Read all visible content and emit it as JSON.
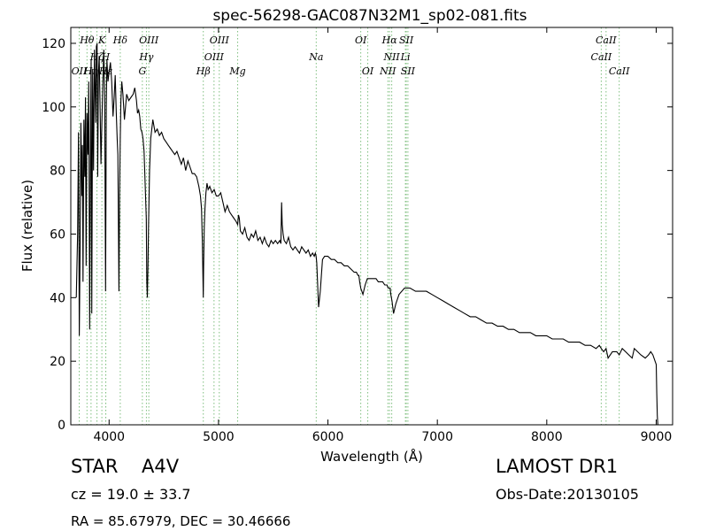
{
  "chart_data": {
    "type": "line",
    "title": "spec-56298-GAC087N32M1_sp02-081.fits",
    "xlabel": "Wavelength (Å)",
    "ylabel": "Flux (relative)",
    "xlim": [
      3650,
      9150
    ],
    "ylim": [
      0,
      125
    ],
    "xticks": [
      4000,
      5000,
      6000,
      7000,
      8000,
      9000
    ],
    "yticks": [
      0,
      20,
      40,
      60,
      80,
      100,
      120
    ],
    "grid": false,
    "series": [
      {
        "color": "#000000",
        "x": [
          3700,
          3712,
          3720,
          3728,
          3735,
          3742,
          3750,
          3756,
          3762,
          3770,
          3778,
          3784,
          3790,
          3798,
          3806,
          3814,
          3822,
          3832,
          3836,
          3842,
          3850,
          3858,
          3866,
          3872,
          3878,
          3884,
          3890,
          3896,
          3902,
          3910,
          3918,
          3926,
          3934,
          3944,
          3952,
          3960,
          3968,
          3974,
          3980,
          3990,
          4000,
          4012,
          4024,
          4036,
          4046,
          4056,
          4066,
          4074,
          4080,
          4090,
          4096,
          4102,
          4108,
          4116,
          4126,
          4140,
          4160,
          4180,
          4200,
          4220,
          4235,
          4250,
          4260,
          4270,
          4280,
          4290,
          4300,
          4310,
          4320,
          4330,
          4340,
          4345,
          4350,
          4355,
          4360,
          4370,
          4380,
          4400,
          4420,
          4440,
          4460,
          4480,
          4500,
          4520,
          4540,
          4560,
          4580,
          4600,
          4620,
          4640,
          4660,
          4680,
          4700,
          4720,
          4740,
          4760,
          4780,
          4800,
          4820,
          4835,
          4845,
          4852,
          4858,
          4861,
          4864,
          4870,
          4876,
          4885,
          4895,
          4905,
          4920,
          4940,
          4960,
          4980,
          5000,
          5020,
          5040,
          5060,
          5080,
          5100,
          5120,
          5140,
          5160,
          5175,
          5183,
          5190,
          5200,
          5220,
          5240,
          5260,
          5280,
          5300,
          5320,
          5340,
          5360,
          5380,
          5400,
          5420,
          5440,
          5460,
          5480,
          5500,
          5520,
          5540,
          5560,
          5570,
          5577,
          5582,
          5590,
          5600,
          5620,
          5640,
          5660,
          5680,
          5700,
          5720,
          5740,
          5760,
          5780,
          5800,
          5820,
          5840,
          5860,
          5875,
          5885,
          5892,
          5898,
          5905,
          5915,
          5930,
          5950,
          5970,
          6000,
          6030,
          6060,
          6090,
          6120,
          6150,
          6180,
          6210,
          6240,
          6260,
          6275,
          6283,
          6290,
          6300,
          6320,
          6340,
          6360,
          6380,
          6400,
          6420,
          6440,
          6460,
          6480,
          6500,
          6520,
          6540,
          6550,
          6557,
          6563,
          6568,
          6575,
          6585,
          6600,
          6620,
          6650,
          6700,
          6750,
          6800,
          6850,
          6900,
          6950,
          7000,
          7050,
          7100,
          7150,
          7200,
          7250,
          7300,
          7350,
          7400,
          7450,
          7500,
          7550,
          7600,
          7650,
          7700,
          7750,
          7800,
          7850,
          7900,
          7950,
          8000,
          8050,
          8100,
          8150,
          8200,
          8250,
          8300,
          8350,
          8400,
          8450,
          8480,
          8498,
          8520,
          8542,
          8560,
          8600,
          8640,
          8662,
          8690,
          8720,
          8750,
          8780,
          8800,
          8830,
          8860,
          8900,
          8930,
          8950,
          8970,
          8990,
          9000,
          9005,
          9010,
          9015
        ],
        "values": [
          40,
          60,
          92,
          28,
          55,
          95,
          72,
          88,
          45,
          96,
          78,
          103,
          50,
          98,
          85,
          108,
          30,
          100,
          115,
          35,
          112,
          80,
          118,
          107,
          95,
          119,
          120,
          78,
          110,
          116,
          100,
          82,
          95,
          108,
          118,
          103,
          42,
          100,
          115,
          108,
          111,
          114,
          108,
          97,
          103,
          110,
          98,
          90,
          85,
          42,
          72,
          90,
          102,
          108,
          104,
          96,
          104,
          102,
          103,
          104,
          106,
          102,
          98,
          99,
          97,
          93,
          92,
          90,
          86,
          75,
          65,
          45,
          40,
          50,
          62,
          80,
          90,
          96,
          92,
          93,
          91,
          92,
          90,
          89,
          88,
          87,
          86,
          85,
          86,
          84,
          82,
          84,
          80,
          83,
          81,
          79,
          79,
          78,
          75,
          72,
          68,
          58,
          45,
          40,
          50,
          62,
          68,
          73,
          76,
          74,
          75,
          73,
          74,
          72,
          72,
          73,
          70,
          67,
          69,
          67,
          66,
          65,
          64,
          63,
          66,
          65,
          61,
          60,
          62,
          59,
          58,
          60,
          59,
          61,
          58,
          59,
          57,
          59,
          57,
          56,
          58,
          57,
          58,
          57,
          58,
          57,
          70,
          63,
          60,
          58,
          57,
          59,
          56,
          55,
          56,
          55,
          54,
          56,
          55,
          54,
          55,
          53,
          54,
          53,
          54,
          53,
          51,
          45,
          37,
          42,
          52,
          53,
          53,
          52,
          52,
          51,
          51,
          50,
          50,
          49,
          48,
          48,
          47,
          47,
          45,
          43,
          41,
          44,
          46,
          46,
          46,
          46,
          46,
          45,
          45,
          45,
          44,
          44,
          43,
          43,
          43,
          43,
          41,
          39,
          35,
          38,
          41,
          43,
          43,
          42,
          42,
          42,
          41,
          40,
          39,
          38,
          37,
          36,
          35,
          34,
          34,
          33,
          32,
          32,
          31,
          31,
          30,
          30,
          29,
          29,
          29,
          28,
          28,
          28,
          27,
          27,
          27,
          26,
          26,
          26,
          25,
          25,
          24,
          25,
          24,
          23,
          24,
          21,
          23,
          23,
          22,
          24,
          23,
          22,
          21,
          24,
          23,
          22,
          21,
          22,
          23,
          22,
          20,
          19,
          10,
          3,
          0
        ]
      }
    ],
    "line_labels": [
      {
        "name": "OII",
        "wave": 3727,
        "row": 2
      },
      {
        "name": "Hθ",
        "wave": 3798,
        "row": 0
      },
      {
        "name": "Hη",
        "wave": 3835,
        "row": 2
      },
      {
        "name": "Hζ",
        "wave": 3889,
        "row": 1
      },
      {
        "name": "Hε",
        "wave": 3970,
        "row": 2
      },
      {
        "name": "K",
        "wave": 3934,
        "row": 0
      },
      {
        "name": "H",
        "wave": 3969,
        "row": 1
      },
      {
        "name": "Hδ",
        "wave": 4102,
        "row": 0
      },
      {
        "name": "OIII",
        "wave": 4363,
        "row": 0
      },
      {
        "name": "Hγ",
        "wave": 4341,
        "row": 1
      },
      {
        "name": "G",
        "wave": 4304,
        "row": 2
      },
      {
        "name": "OIII",
        "wave": 5007,
        "row": 0
      },
      {
        "name": "OIII",
        "wave": 4959,
        "row": 1
      },
      {
        "name": "Hβ",
        "wave": 4861,
        "row": 2
      },
      {
        "name": "Mg",
        "wave": 5175,
        "row": 2
      },
      {
        "name": "Na",
        "wave": 5893,
        "row": 1
      },
      {
        "name": "OI",
        "wave": 6300,
        "row": 0
      },
      {
        "name": "OI",
        "wave": 6364,
        "row": 2
      },
      {
        "name": "Hα",
        "wave": 6563,
        "row": 0
      },
      {
        "name": "SII",
        "wave": 6716,
        "row": 0
      },
      {
        "name": "NII",
        "wave": 6583,
        "row": 1
      },
      {
        "name": "Li",
        "wave": 6708,
        "row": 1
      },
      {
        "name": "NII",
        "wave": 6548,
        "row": 2
      },
      {
        "name": "SII",
        "wave": 6731,
        "row": 2
      },
      {
        "name": "CaII",
        "wave": 8542,
        "row": 0
      },
      {
        "name": "CaII",
        "wave": 8498,
        "row": 1
      },
      {
        "name": "CaII",
        "wave": 8662,
        "row": 2
      }
    ],
    "line_color": "#7fbf7f"
  },
  "info": {
    "class_label": "STAR",
    "subclass": "A4V",
    "survey": "LAMOST DR1",
    "cz": "cz = 19.0  ± 33.7",
    "obs_date": "Obs-Date:20130105",
    "coords": "RA = 85.67979, DEC = 30.46666"
  }
}
